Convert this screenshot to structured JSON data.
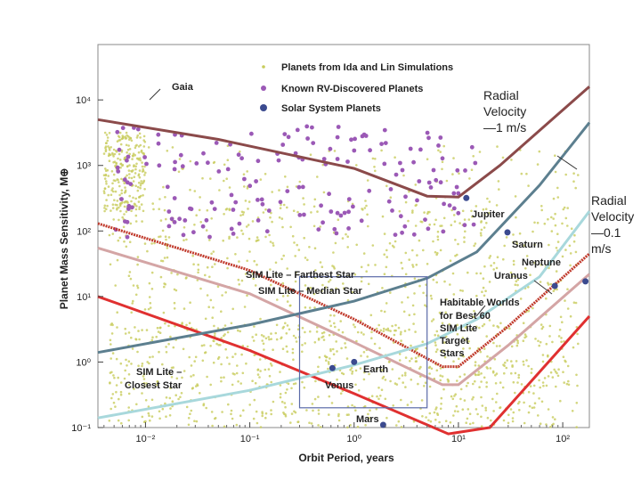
{
  "chart_data": {
    "type": "scatter",
    "xlabel": "Orbit Period, years",
    "ylabel": "Planet Mass Sensitivity, M⊕",
    "xscale": "log",
    "yscale": "log",
    "xlim": [
      0.0035,
      180
    ],
    "ylim": [
      0.1,
      70000
    ],
    "xticks": [
      "10⁻²",
      "10⁻¹",
      "10⁰",
      "10¹",
      "10²"
    ],
    "yticks": [
      "10⁻¹",
      "10⁰",
      "10¹",
      "10²",
      "10³",
      "10⁴"
    ],
    "legend": {
      "placement": "top-center",
      "entries": [
        {
          "label": "Planets from Ida and Lin Simulations",
          "marker": "small-dot",
          "color": "#c8cc5c"
        },
        {
          "label": "Known RV-Discovered Planets",
          "marker": "cross-dot",
          "color": "#9b59b6"
        },
        {
          "label": "Solar System Planets",
          "marker": "dot",
          "color": "#3b4a8f"
        }
      ]
    },
    "series": [
      {
        "name": "Gaia",
        "kind": "line",
        "color": "#8b4a4a",
        "points": [
          [
            0.0035,
            5000
          ],
          [
            0.05,
            2500
          ],
          [
            1,
            900
          ],
          [
            5,
            340
          ],
          [
            10,
            330
          ],
          [
            25,
            1000
          ],
          [
            180,
            16000
          ]
        ]
      },
      {
        "name": "SIM Lite – Farthest Star",
        "kind": "line",
        "color": "#c0392b",
        "dashed": true,
        "points": [
          [
            0.0035,
            130
          ],
          [
            0.1,
            25
          ],
          [
            1,
            4.5
          ],
          [
            7,
            0.85
          ],
          [
            10,
            0.85
          ],
          [
            30,
            3.5
          ],
          [
            180,
            45
          ]
        ]
      },
      {
        "name": "SIM Lite – Median Star",
        "kind": "line",
        "color": "#d4a5a5",
        "points": [
          [
            0.0035,
            55
          ],
          [
            0.1,
            11
          ],
          [
            1,
            2
          ],
          [
            7,
            0.45
          ],
          [
            10,
            0.45
          ],
          [
            30,
            1.8
          ],
          [
            180,
            22
          ]
        ]
      },
      {
        "name": "SIM Lite – Closest Star",
        "kind": "line",
        "color": "#e03030",
        "points": [
          [
            0.0035,
            10
          ],
          [
            0.1,
            1.5
          ],
          [
            1,
            0.33
          ],
          [
            8,
            0.08
          ],
          [
            20,
            0.1
          ],
          [
            180,
            5
          ]
        ]
      },
      {
        "name": "Radial Velocity —1 m/s",
        "kind": "line",
        "color": "#5c7f8f",
        "points": [
          [
            0.0035,
            1.4
          ],
          [
            0.1,
            3.7
          ],
          [
            1,
            8.5
          ],
          [
            5,
            19
          ],
          [
            15,
            48
          ],
          [
            60,
            500
          ],
          [
            180,
            4500
          ]
        ]
      },
      {
        "name": "Radial Velocity —0.1 m/s",
        "kind": "line",
        "color": "#a8d8dc",
        "points": [
          [
            0.0035,
            0.14
          ],
          [
            0.1,
            0.37
          ],
          [
            1,
            0.9
          ],
          [
            5,
            1.9
          ],
          [
            15,
            4.5
          ],
          [
            60,
            20
          ],
          [
            180,
            200
          ]
        ]
      }
    ],
    "solar_system_planets": [
      {
        "name": "Venus",
        "x": 0.62,
        "y": 0.81
      },
      {
        "name": "Earth",
        "x": 1.0,
        "y": 1.0
      },
      {
        "name": "Mars",
        "x": 1.9,
        "y": 0.11
      },
      {
        "name": "Jupiter",
        "x": 11.9,
        "y": 318
      },
      {
        "name": "Saturn",
        "x": 29.5,
        "y": 95
      },
      {
        "name": "Uranus",
        "x": 84,
        "y": 14.5
      },
      {
        "name": "Neptune",
        "x": 165,
        "y": 17
      }
    ],
    "box": {
      "label": "Habitable Worlds for Best 60 SIM Lite Target Stars",
      "x": [
        0.3,
        5
      ],
      "y": [
        0.2,
        20
      ]
    },
    "annotations": [
      "Gaia",
      "SIM Lite – Farthest Star",
      "SIM Lite – Median Star",
      "SIM Lite – Closest Star",
      "Habitable Worlds",
      "for Best 60",
      "SIM Lite",
      "Target",
      "Stars",
      "Jupiter",
      "Saturn",
      "Uranus",
      "Neptune",
      "Earth",
      "Venus",
      "Mars"
    ],
    "overlay_labels": {
      "rv1": "Radial\nVelocity\n—1 m/s",
      "rv01": "Radial\nVelocity\n—0.1\nm/s"
    }
  }
}
